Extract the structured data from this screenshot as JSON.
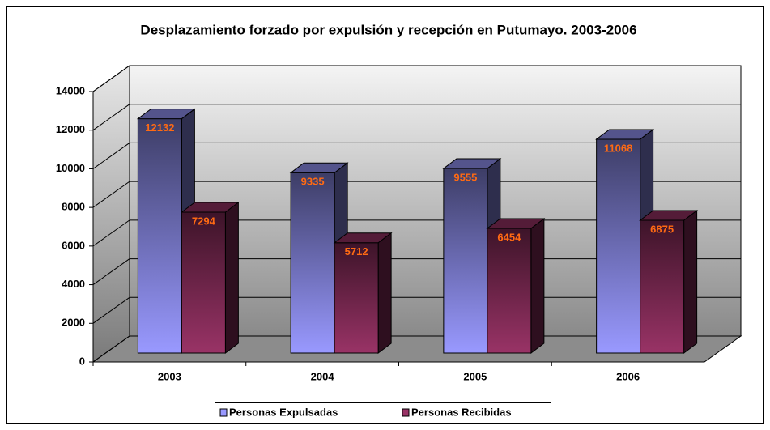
{
  "chart_data": {
    "type": "bar",
    "title": "Desplazamiento forzado por expulsión y recepción en Putumayo. 2003-2006",
    "categories": [
      "2003",
      "2004",
      "2005",
      "2006"
    ],
    "series": [
      {
        "name": "Personas Expulsadas",
        "color": "#9999ff",
        "values": [
          12132,
          9335,
          9555,
          11068
        ]
      },
      {
        "name": "Personas Recibidas",
        "color": "#993366",
        "values": [
          7294,
          5712,
          6454,
          6875
        ]
      }
    ],
    "ylim": [
      0,
      14000
    ],
    "yticks": [
      0,
      2000,
      4000,
      6000,
      8000,
      10000,
      12000,
      14000
    ],
    "grid": true,
    "legend": "bottom"
  }
}
